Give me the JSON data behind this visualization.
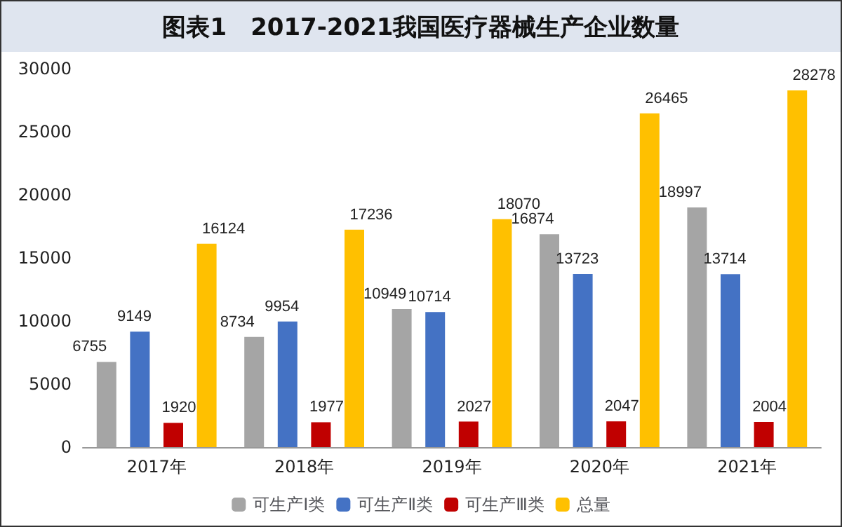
{
  "chart_data": {
    "type": "bar",
    "title": "图表1　2017-2021我国医疗器械生产企业数量",
    "categories": [
      "2017年",
      "2018年",
      "2019年",
      "2020年",
      "2021年"
    ],
    "series": [
      {
        "name": "可生产Ⅰ类",
        "color": "#a5a5a5",
        "values": [
          6755,
          8734,
          10949,
          16874,
          18997
        ]
      },
      {
        "name": "可生产Ⅱ类",
        "color": "#4472c4",
        "values": [
          9149,
          9954,
          10714,
          13723,
          13714
        ]
      },
      {
        "name": "可生产Ⅲ类",
        "color": "#c00000",
        "values": [
          1920,
          1977,
          2027,
          2047,
          2004
        ]
      },
      {
        "name": "总量",
        "color": "#ffc000",
        "values": [
          16124,
          17236,
          18070,
          26465,
          28278
        ]
      }
    ],
    "ylim": [
      0,
      30000
    ],
    "yticks": [
      0,
      5000,
      10000,
      15000,
      20000,
      25000,
      30000
    ],
    "grid": false,
    "legend": "bottom",
    "data_labels": true
  }
}
